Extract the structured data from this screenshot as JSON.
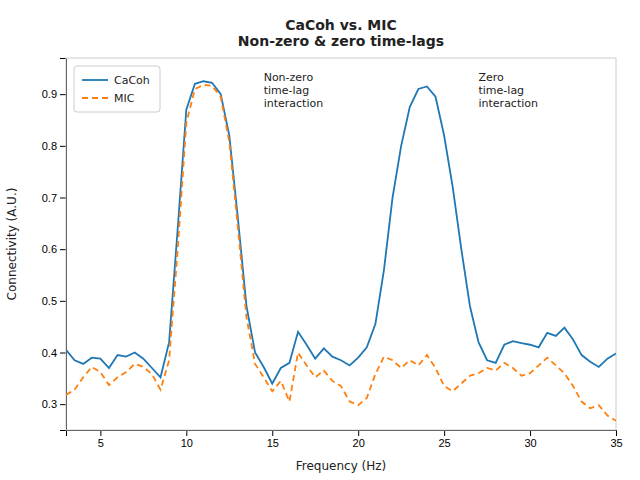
{
  "chart_data": {
    "type": "line",
    "title": "CaCoh vs. MIC\nNon-zero & zero time-lags",
    "xlabel": "Frequency (Hz)",
    "ylabel": "Connectivity (A.U.)",
    "xlim": [
      3,
      35
    ],
    "ylim": [
      0.25,
      0.97
    ],
    "xticks": [
      5,
      10,
      15,
      20,
      25,
      30,
      35
    ],
    "yticks": [
      0.3,
      0.4,
      0.5,
      0.6,
      0.7,
      0.8,
      0.9
    ],
    "grid": false,
    "legend": "upper left",
    "x": [
      3.0,
      3.5,
      4.0,
      4.5,
      5.0,
      5.5,
      6.0,
      6.5,
      7.0,
      7.5,
      8.0,
      8.5,
      9.0,
      9.5,
      10.0,
      10.5,
      11.0,
      11.5,
      12.0,
      12.5,
      13.0,
      13.5,
      14.0,
      14.5,
      15.0,
      15.5,
      16.0,
      16.5,
      17.0,
      17.5,
      18.0,
      18.5,
      19.0,
      19.5,
      20.0,
      20.5,
      21.0,
      21.5,
      22.0,
      22.5,
      23.0,
      23.5,
      24.0,
      24.5,
      25.0,
      25.5,
      26.0,
      26.5,
      27.0,
      27.5,
      28.0,
      28.5,
      29.0,
      29.5,
      30.0,
      30.5,
      31.0,
      31.5,
      32.0,
      32.5,
      33.0,
      33.5,
      34.0,
      34.5,
      35.0
    ],
    "series": [
      {
        "name": "CaCoh",
        "color": "#1f77b4",
        "line_style": "solid",
        "values": [
          0.405,
          0.385,
          0.378,
          0.39,
          0.388,
          0.37,
          0.395,
          0.392,
          0.4,
          0.388,
          0.37,
          0.352,
          0.42,
          0.64,
          0.87,
          0.92,
          0.925,
          0.922,
          0.9,
          0.82,
          0.66,
          0.49,
          0.4,
          0.372,
          0.34,
          0.37,
          0.38,
          0.44,
          0.415,
          0.388,
          0.408,
          0.392,
          0.385,
          0.375,
          0.39,
          0.41,
          0.455,
          0.56,
          0.7,
          0.8,
          0.875,
          0.91,
          0.915,
          0.895,
          0.82,
          0.72,
          0.6,
          0.49,
          0.42,
          0.385,
          0.38,
          0.415,
          0.422,
          0.418,
          0.415,
          0.41,
          0.438,
          0.432,
          0.448,
          0.425,
          0.395,
          0.382,
          0.372,
          0.388,
          0.398
        ]
      },
      {
        "name": "MIC",
        "color": "#ff7f0e",
        "line_style": "dashed",
        "values": [
          0.318,
          0.328,
          0.352,
          0.372,
          0.362,
          0.337,
          0.352,
          0.362,
          0.378,
          0.372,
          0.358,
          0.328,
          0.385,
          0.6,
          0.845,
          0.91,
          0.918,
          0.916,
          0.895,
          0.808,
          0.642,
          0.468,
          0.378,
          0.352,
          0.325,
          0.345,
          0.305,
          0.4,
          0.375,
          0.352,
          0.365,
          0.345,
          0.335,
          0.305,
          0.298,
          0.312,
          0.358,
          0.392,
          0.385,
          0.37,
          0.385,
          0.375,
          0.395,
          0.37,
          0.335,
          0.325,
          0.34,
          0.355,
          0.36,
          0.37,
          0.365,
          0.38,
          0.37,
          0.355,
          0.36,
          0.375,
          0.39,
          0.375,
          0.36,
          0.335,
          0.305,
          0.292,
          0.298,
          0.278,
          0.268
        ]
      }
    ],
    "annotations": [
      {
        "text": "Non-zero\ntime-lag\ninteraction",
        "x": 14.5,
        "y": 0.945
      },
      {
        "text": "Zero\ntime-lag\ninteraction",
        "x": 27.0,
        "y": 0.945
      }
    ]
  }
}
